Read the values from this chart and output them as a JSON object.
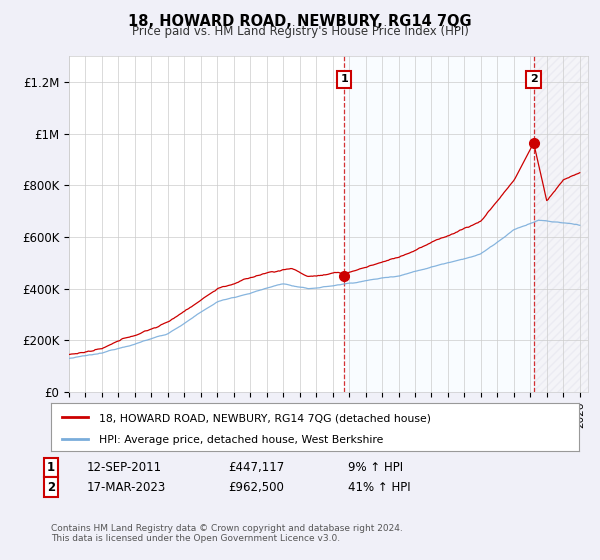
{
  "title": "18, HOWARD ROAD, NEWBURY, RG14 7QG",
  "subtitle": "Price paid vs. HM Land Registry's House Price Index (HPI)",
  "ylabel_ticks": [
    "£0",
    "£200K",
    "£400K",
    "£600K",
    "£800K",
    "£1M",
    "£1.2M"
  ],
  "ytick_vals": [
    0,
    200000,
    400000,
    600000,
    800000,
    1000000,
    1200000
  ],
  "ylim": [
    0,
    1300000
  ],
  "xlim_start": 1995.0,
  "xlim_end": 2026.5,
  "legend_label_red": "18, HOWARD ROAD, NEWBURY, RG14 7QG (detached house)",
  "legend_label_blue": "HPI: Average price, detached house, West Berkshire",
  "transaction1_label": "1",
  "transaction1_date": "12-SEP-2011",
  "transaction1_price": "£447,117",
  "transaction1_hpi": "9% ↑ HPI",
  "transaction1_x": 2011.7,
  "transaction1_y": 447117,
  "transaction2_label": "2",
  "transaction2_date": "17-MAR-2023",
  "transaction2_price": "£962,500",
  "transaction2_hpi": "41% ↑ HPI",
  "transaction2_x": 2023.2,
  "transaction2_y": 962500,
  "color_red": "#cc0000",
  "color_blue": "#7aaddb",
  "color_fill_blue": "#ddeeff",
  "footer": "Contains HM Land Registry data © Crown copyright and database right 2024.\nThis data is licensed under the Open Government Licence v3.0.",
  "background_color": "#f0f0f8",
  "plot_bg_color": "#ffffff",
  "grid_color": "#cccccc"
}
